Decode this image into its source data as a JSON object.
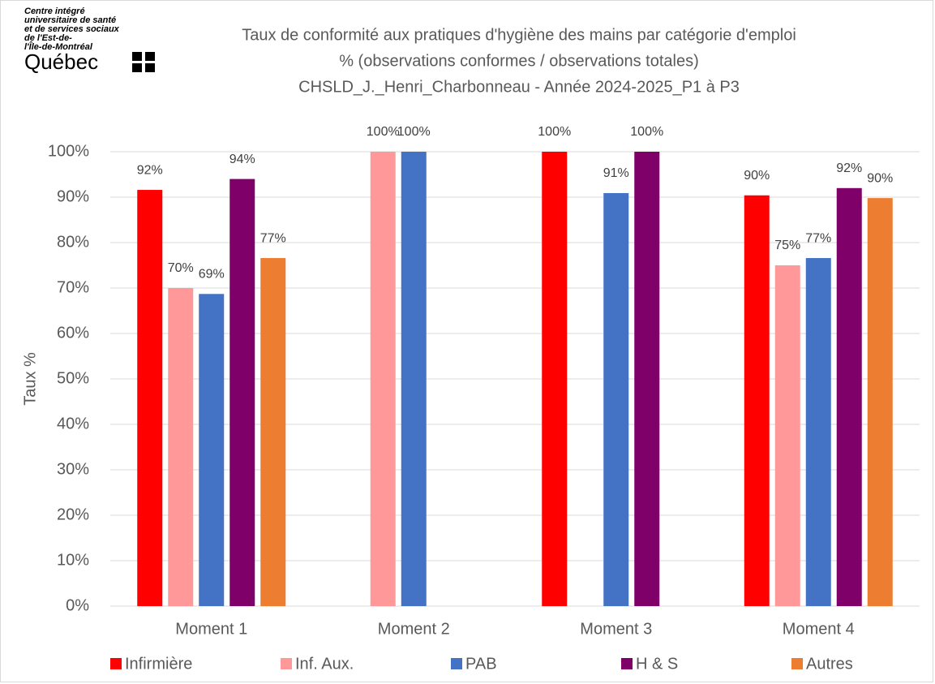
{
  "logo": {
    "lines": [
      "Centre intégré",
      "universitaire de santé",
      "et de services sociaux",
      "de l'Est-de-",
      "l'Île-de-Montréal"
    ],
    "name": "Québec"
  },
  "chart_data": {
    "type": "bar",
    "title": [
      "Taux de conformité aux pratiques d'hygiène des mains par catégorie d'emploi",
      "% (observations conformes / observations totales)",
      "CHSLD_J._Henri_Charbonneau - Année 2024-2025_P1 à P3"
    ],
    "y_label": "Taux %",
    "categories": [
      "Moment 1",
      "Moment 2",
      "Moment 3",
      "Moment 4"
    ],
    "series": [
      {
        "name": "Infirmière",
        "color": "#ff0000",
        "values": [
          91.6,
          null,
          100,
          90.4
        ],
        "value_labels": [
          "92%",
          null,
          "100%",
          "90%"
        ]
      },
      {
        "name": "Inf. Aux.",
        "color": "#ff9999",
        "values": [
          70,
          100,
          null,
          75
        ],
        "value_labels": [
          "70%",
          "100%",
          null,
          "75%"
        ]
      },
      {
        "name": "PAB",
        "color": "#4472c4",
        "values": [
          68.7,
          100,
          90.9,
          76.6
        ],
        "value_labels": [
          "69%",
          "100%",
          "91%",
          "77%"
        ]
      },
      {
        "name": "H & S",
        "color": "#7f0068",
        "values": [
          94,
          null,
          100,
          92
        ],
        "value_labels": [
          "94%",
          null,
          "100%",
          "92%"
        ]
      },
      {
        "name": "Autres",
        "color": "#ed7d31",
        "values": [
          76.6,
          null,
          null,
          89.8
        ],
        "value_labels": [
          "77%",
          null,
          null,
          "90%"
        ]
      }
    ],
    "ylim": [
      0,
      100
    ],
    "yticks": [
      {
        "value": 0,
        "label": "0%"
      },
      {
        "value": 10,
        "label": "10%"
      },
      {
        "value": 20,
        "label": "20%"
      },
      {
        "value": 30,
        "label": "30%"
      },
      {
        "value": 40,
        "label": "40%"
      },
      {
        "value": 50,
        "label": "50%"
      },
      {
        "value": 60,
        "label": "60%"
      },
      {
        "value": 70,
        "label": "70%"
      },
      {
        "value": 80,
        "label": "80%"
      },
      {
        "value": 90,
        "label": "90%"
      },
      {
        "value": 100,
        "label": "100%"
      }
    ],
    "grid": true,
    "legend": "bottom"
  }
}
